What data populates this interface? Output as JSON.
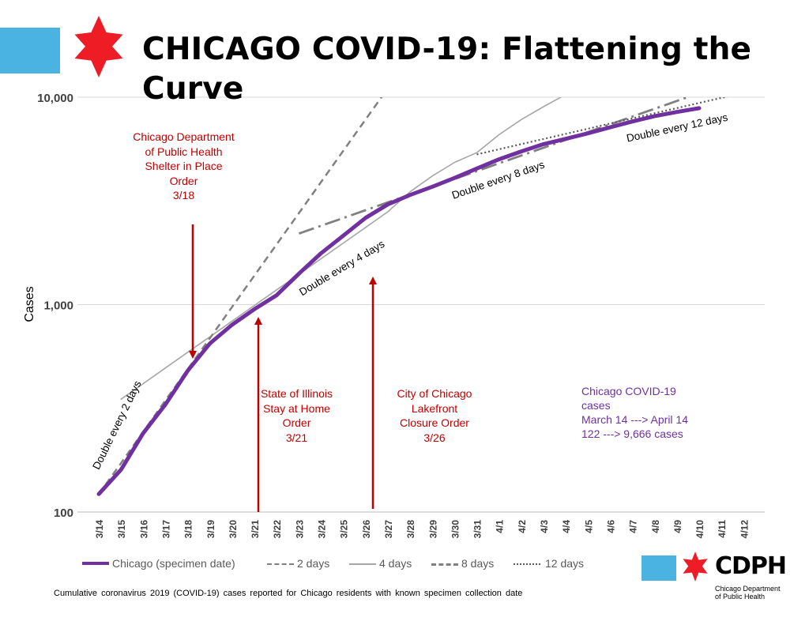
{
  "slide": {
    "title_line1": "CHICAGO COVID-19: Flattening the",
    "title_line2": "Curve",
    "footnote": "Cumulative coronavirus 2019 (COVID-19) cases reported for Chicago residents with known specimen collection date"
  },
  "colors": {
    "brand_blue": "#4ab3e2",
    "star_red": "#ee1c25",
    "chicago_line": "#7030a0",
    "annotation_red": "#c00000",
    "reference_gray": "#808080",
    "light_gray": "#a6a6a6"
  },
  "annotations": {
    "shelter": {
      "l1": "Chicago Department",
      "l2": "of Public Health",
      "l3": "Shelter in Place",
      "l4": "Order",
      "l5": "3/18"
    },
    "stay_home": {
      "l1": "State of Illinois",
      "l2": "Stay at Home",
      "l3": "Order",
      "l4": "3/21"
    },
    "lakefront": {
      "l1": "City of Chicago",
      "l2": "Lakefront",
      "l3": "Closure Order",
      "l4": "3/26"
    },
    "summary": {
      "l1": "Chicago COVID-19",
      "l2": "cases",
      "l3": "March 14 ---> April 14",
      "l4": "122 ---> 9,666 cases"
    }
  },
  "legend": {
    "chicago": "Chicago (specimen date)",
    "d2": "2 days",
    "d4": "4 days",
    "d8": "8 days",
    "d12": "12 days"
  },
  "logo": {
    "text": "CDPH",
    "sub1": "Chicago Department",
    "sub2": "of Public Health"
  },
  "chart_data": {
    "type": "line",
    "ylabel": "Cases",
    "xlabel": "",
    "y_scale": "log",
    "ylim": [
      100,
      10000
    ],
    "y_ticks": [
      100,
      1000,
      10000
    ],
    "y_tick_labels": [
      "100",
      "1,000",
      "10,000"
    ],
    "grid": "horizontal",
    "legend_position": "bottom",
    "categories": [
      "3/14",
      "3/15",
      "3/16",
      "3/17",
      "3/18",
      "3/19",
      "3/20",
      "3/21",
      "3/22",
      "3/23",
      "3/24",
      "3/25",
      "3/26",
      "3/27",
      "3/28",
      "3/29",
      "3/30",
      "3/31",
      "4/1",
      "4/2",
      "4/3",
      "4/4",
      "4/5",
      "4/6",
      "4/7",
      "4/8",
      "4/9",
      "4/10",
      "4/11",
      "4/12"
    ],
    "series": [
      {
        "name": "Chicago (specimen date)",
        "style": "solid-thick",
        "color": "#7030a0",
        "values": [
          122,
          160,
          240,
          330,
          480,
          650,
          800,
          950,
          1110,
          1410,
          1770,
          2150,
          2620,
          3040,
          3380,
          3700,
          4080,
          4530,
          5020,
          5480,
          5940,
          6300,
          6700,
          7160,
          7640,
          8110,
          8490,
          8850,
          null,
          null
        ]
      },
      {
        "name": "2 days",
        "style": "dashed",
        "color": "#808080",
        "values": [
          122,
          172,
          244,
          345,
          488,
          690,
          976,
          1380,
          1952,
          2761,
          3904,
          5522,
          7809,
          11043,
          null,
          null,
          null,
          null,
          null,
          null,
          null,
          null,
          null,
          null,
          null,
          null,
          null,
          null,
          null,
          null
        ]
      },
      {
        "name": "4 days",
        "style": "solid-thin",
        "color": "#a6a6a6",
        "values": [
          null,
          350,
          416,
          495,
          589,
          700,
          833,
          990,
          1178,
          1401,
          1666,
          1981,
          2356,
          2802,
          3500,
          4170,
          4850,
          5400,
          6600,
          7800,
          9000,
          10300,
          null,
          null,
          null,
          null,
          null,
          null,
          null,
          null
        ]
      },
      {
        "name": "8 days",
        "style": "dash-dot",
        "color": "#808080",
        "values": [
          null,
          null,
          null,
          null,
          null,
          null,
          null,
          null,
          null,
          2200,
          2399,
          2616,
          2853,
          3111,
          3392,
          3699,
          4034,
          4399,
          4797,
          5232,
          5705,
          6222,
          6785,
          7399,
          8069,
          8799,
          9596,
          10464,
          null,
          null
        ]
      },
      {
        "name": "12 days",
        "style": "dotted",
        "color": "#595959",
        "values": [
          null,
          null,
          null,
          null,
          null,
          null,
          null,
          null,
          null,
          null,
          null,
          null,
          null,
          null,
          null,
          null,
          null,
          5300,
          5612,
          5941,
          6290,
          6659,
          7050,
          7464,
          7902,
          8366,
          8857,
          9377,
          9927,
          10510
        ]
      }
    ],
    "annotations": [
      {
        "text": "Double every 2 days"
      },
      {
        "text": "Double every 4 days"
      },
      {
        "text": "Double every 8 days"
      },
      {
        "text": "Double every 12 days"
      }
    ]
  }
}
